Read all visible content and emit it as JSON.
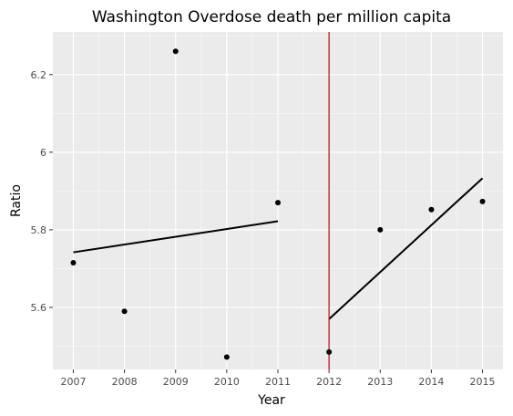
{
  "chart_data": {
    "type": "scatter",
    "title": "Washington Overdose death per million capita",
    "xlabel": "Year",
    "ylabel": "Ratio",
    "xlim": [
      2006.6,
      2015.4
    ],
    "ylim": [
      5.44,
      6.31
    ],
    "x_ticks": [
      2007,
      2008,
      2009,
      2010,
      2011,
      2012,
      2013,
      2014,
      2015
    ],
    "y_ticks": [
      5.6,
      5.8,
      6.0,
      6.2
    ],
    "y_tick_labels": [
      "5.6",
      "5.8",
      "6",
      "6.2"
    ],
    "grid": true,
    "points": [
      {
        "x": 2007,
        "y": 5.715
      },
      {
        "x": 2008,
        "y": 5.59
      },
      {
        "x": 2009,
        "y": 6.26
      },
      {
        "x": 2010,
        "y": 5.472
      },
      {
        "x": 2011,
        "y": 5.87
      },
      {
        "x": 2012,
        "y": 5.485
      },
      {
        "x": 2013,
        "y": 5.8
      },
      {
        "x": 2014,
        "y": 5.852
      },
      {
        "x": 2015,
        "y": 5.873
      }
    ],
    "trend_lines": [
      {
        "x": [
          2007,
          2011
        ],
        "y": [
          5.742,
          5.822
        ]
      },
      {
        "x": [
          2012,
          2015
        ],
        "y": [
          5.57,
          5.933
        ]
      }
    ],
    "vline": {
      "x": 2012
    }
  },
  "colors": {
    "panel_bg": "#ebebeb",
    "grid_major": "#ffffff",
    "point": "#000000",
    "trend_line": "#000000",
    "vline": "#cc0000"
  }
}
